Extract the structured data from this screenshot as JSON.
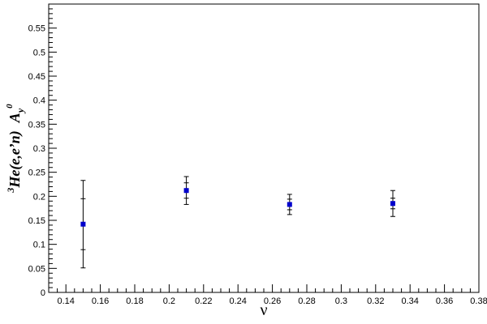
{
  "chart_data": {
    "type": "scatter",
    "xlabel": "ν",
    "ylabel": "³He(e,e’n)  A_y⁰",
    "ylabel_parts": {
      "sup": "3",
      "main": "He(e,e’n)",
      "A": "A",
      "sub": "y",
      "sup2": "0"
    },
    "xlim": [
      0.13,
      0.38
    ],
    "ylim": [
      0,
      0.6
    ],
    "x_ticks": [
      "0.14",
      "0.16",
      "0.18",
      "0.2",
      "0.22",
      "0.24",
      "0.26",
      "0.28",
      "0.3",
      "0.32",
      "0.34",
      "0.36",
      "0.38"
    ],
    "y_ticks": [
      "0",
      "0.05",
      "0.1",
      "0.15",
      "0.2",
      "0.25",
      "0.3",
      "0.35",
      "0.4",
      "0.45",
      "0.5",
      "0.55"
    ],
    "grid": false,
    "marker_color": "#0000cc",
    "points": [
      {
        "x": 0.15,
        "y": 0.142,
        "stat_err": 0.053,
        "sys_err": 0.091
      },
      {
        "x": 0.21,
        "y": 0.212,
        "stat_err": 0.016,
        "sys_err": 0.029
      },
      {
        "x": 0.27,
        "y": 0.183,
        "stat_err": 0.011,
        "sys_err": 0.021
      },
      {
        "x": 0.33,
        "y": 0.185,
        "stat_err": 0.011,
        "sys_err": 0.027
      }
    ]
  }
}
